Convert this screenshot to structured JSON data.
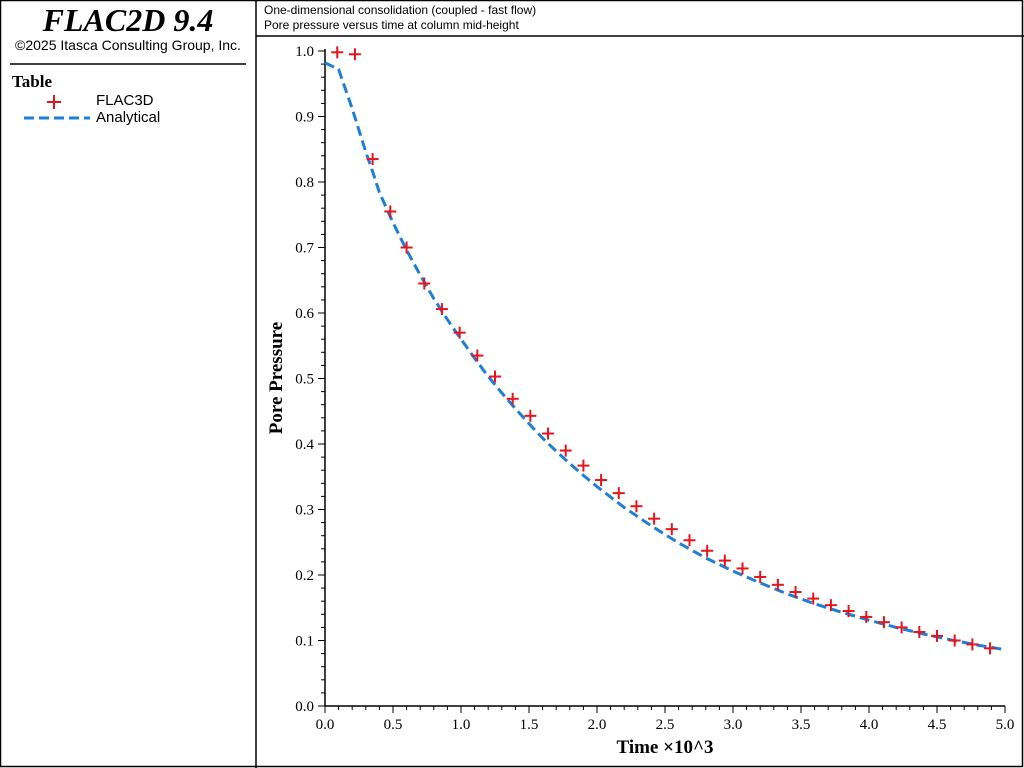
{
  "app": {
    "title": "FLAC2D 9.4",
    "copyright": "©2025 Itasca Consulting Group, Inc."
  },
  "legend": {
    "title": "Table",
    "entries": [
      {
        "label": "FLAC3D",
        "marker": "plus-marker-icon",
        "color": "#e8141c"
      },
      {
        "label": "Analytical",
        "marker": "dashed-line-icon",
        "color": "#1e7fd8"
      }
    ]
  },
  "chart_data": {
    "type": "line",
    "title": "One-dimensional consolidation (coupled - fast flow)",
    "subtitle": "Pore pressure versus time at column mid-height",
    "xlabel": "Time ×10^3",
    "ylabel": "Pore Pressure",
    "xlim": [
      0,
      5.0
    ],
    "ylim": [
      0,
      1.0
    ],
    "xticks": [
      "0.0",
      "0.5",
      "1.0",
      "1.5",
      "2.0",
      "2.5",
      "3.0",
      "3.5",
      "4.0",
      "4.5",
      "5.0"
    ],
    "yticks": [
      "0.0",
      "0.1",
      "0.2",
      "0.3",
      "0.4",
      "0.5",
      "0.6",
      "0.7",
      "0.8",
      "0.9",
      "1.0"
    ],
    "grid": false,
    "legend_position": "left-panel",
    "series": [
      {
        "name": "FLAC3D",
        "style": "marker-plus",
        "color": "#e8141c",
        "x": [
          0.09,
          0.22,
          0.35,
          0.48,
          0.6,
          0.73,
          0.86,
          0.99,
          1.12,
          1.25,
          1.38,
          1.51,
          1.64,
          1.77,
          1.9,
          2.03,
          2.16,
          2.29,
          2.42,
          2.55,
          2.68,
          2.81,
          2.94,
          3.07,
          3.2,
          3.33,
          3.46,
          3.59,
          3.72,
          3.85,
          3.98,
          4.11,
          4.24,
          4.37,
          4.5,
          4.63,
          4.76,
          4.89
        ],
        "y": [
          0.998,
          0.995,
          0.835,
          0.755,
          0.7,
          0.645,
          0.606,
          0.57,
          0.535,
          0.503,
          0.469,
          0.443,
          0.416,
          0.39,
          0.367,
          0.345,
          0.325,
          0.305,
          0.286,
          0.27,
          0.253,
          0.237,
          0.222,
          0.21,
          0.197,
          0.185,
          0.174,
          0.164,
          0.154,
          0.145,
          0.136,
          0.128,
          0.12,
          0.113,
          0.107,
          0.1,
          0.094,
          0.088
        ]
      },
      {
        "name": "Analytical",
        "style": "dashed-line",
        "color": "#1e7fd8",
        "x": [
          0.0,
          0.1,
          0.2,
          0.3,
          0.35,
          0.4,
          0.5,
          0.6,
          0.7,
          0.8,
          0.9,
          1.0,
          1.1,
          1.2,
          1.3,
          1.4,
          1.5,
          1.6,
          1.7,
          1.8,
          1.9,
          2.0,
          2.2,
          2.4,
          2.6,
          2.8,
          3.0,
          3.2,
          3.4,
          3.6,
          3.8,
          4.0,
          4.2,
          4.4,
          4.6,
          4.8,
          5.0
        ],
        "y": [
          0.982,
          0.972,
          0.912,
          0.846,
          0.816,
          0.784,
          0.738,
          0.696,
          0.658,
          0.622,
          0.59,
          0.56,
          0.531,
          0.503,
          0.478,
          0.454,
          0.431,
          0.409,
          0.389,
          0.37,
          0.352,
          0.335,
          0.303,
          0.275,
          0.249,
          0.226,
          0.206,
          0.188,
          0.171,
          0.156,
          0.143,
          0.131,
          0.12,
          0.11,
          0.101,
          0.093,
          0.086
        ]
      }
    ]
  }
}
